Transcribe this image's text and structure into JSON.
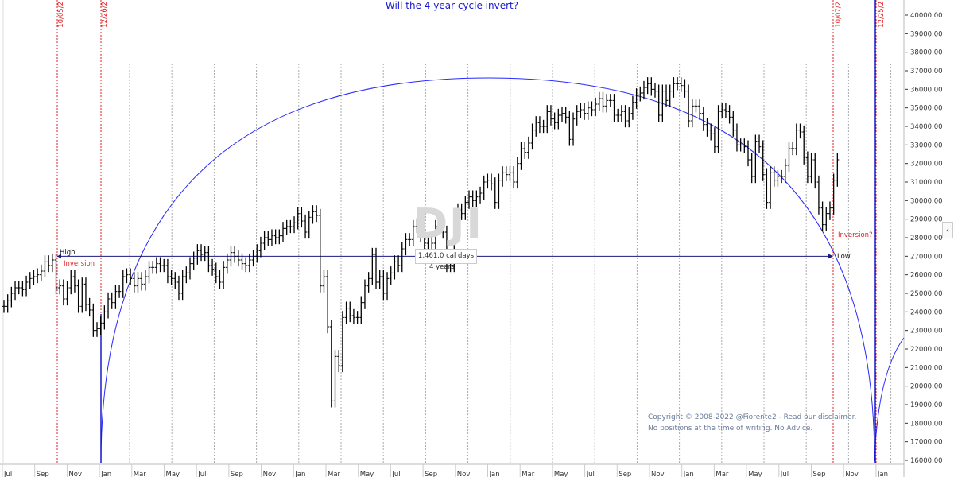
{
  "chart_data": {
    "type": "ohlc-line",
    "title": "Will the 4 year cycle invert?",
    "watermark": "DJI",
    "ylim": [
      16000,
      40000
    ],
    "y_ticks": [
      "40000.00",
      "39000.00",
      "38000.00",
      "37000.00",
      "36000.00",
      "35000.00",
      "34000.00",
      "33000.00",
      "32000.00",
      "31000.00",
      "30000.00",
      "29000.00",
      "28000.00",
      "27000.00",
      "26000.00",
      "25000.00",
      "24000.00",
      "23000.00",
      "22000.00",
      "21000.00",
      "20000.00",
      "19000.00",
      "18000.00",
      "17000.00",
      "16000.00"
    ],
    "x_ticks": [
      "Jul",
      "Sep",
      "Nov",
      "Jan",
      "Mar",
      "May",
      "Jul",
      "Sep",
      "Nov",
      "Jan",
      "Mar",
      "May",
      "Jul",
      "Sep",
      "Nov",
      "Jan",
      "Mar",
      "May",
      "Jul",
      "Sep",
      "Nov",
      "Jan",
      "Mar",
      "May",
      "Jul",
      "Sep",
      "Nov",
      "Jan"
    ],
    "series_weekly_close_thousands": [
      24.3,
      24.6,
      25.0,
      25.3,
      25.3,
      25.2,
      25.6,
      25.8,
      25.9,
      26.0,
      26.2,
      26.7,
      26.5,
      26.8,
      25.3,
      25.4,
      24.7,
      25.3,
      25.9,
      25.4,
      24.3,
      25.5,
      24.4,
      24.1,
      23.0,
      23.1,
      23.4,
      24.0,
      24.7,
      24.5,
      25.1,
      25.1,
      25.9,
      26.0,
      25.8,
      25.4,
      25.8,
      25.5,
      25.9,
      26.4,
      26.4,
      26.6,
      26.5,
      26.5,
      25.9,
      25.8,
      25.6,
      25.0,
      25.9,
      26.1,
      26.6,
      26.9,
      27.3,
      27.1,
      27.2,
      26.5,
      26.3,
      25.9,
      25.6,
      26.4,
      26.8,
      27.2,
      27.0,
      26.8,
      26.6,
      26.5,
      26.8,
      27.0,
      27.3,
      27.7,
      28.0,
      27.9,
      28.1,
      28.0,
      28.1,
      28.5,
      28.6,
      28.6,
      28.8,
      29.3,
      28.9,
      28.3,
      29.1,
      29.4,
      29.2,
      25.4,
      25.9,
      23.2,
      19.2,
      21.6,
      21.1,
      23.7,
      24.2,
      23.8,
      23.7,
      23.7,
      24.5,
      25.4,
      25.8,
      27.1,
      25.6,
      25.9,
      25.0,
      25.8,
      26.1,
      26.7,
      26.5,
      27.4,
      27.9,
      27.9,
      28.6,
      28.7,
      28.1,
      27.7,
      27.1,
      27.7,
      28.6,
      28.6,
      28.3,
      26.5,
      26.5,
      28.3,
      29.5,
      29.3,
      29.9,
      30.2,
      30.0,
      30.2,
      30.4,
      31.0,
      31.1,
      30.9,
      29.9,
      31.1,
      31.5,
      31.4,
      31.5,
      31.0,
      32.0,
      32.8,
      32.6,
      33.1,
      33.8,
      34.2,
      34.0,
      34.0,
      34.8,
      34.4,
      34.2,
      34.6,
      34.7,
      34.5,
      33.3,
      34.4,
      34.8,
      34.9,
      34.7,
      35.0,
      34.9,
      35.2,
      35.5,
      35.1,
      35.4,
      35.4,
      34.6,
      34.6,
      34.8,
      34.3,
      34.7,
      35.3,
      35.7,
      35.8,
      36.1,
      36.3,
      36.0,
      35.9,
      34.6,
      35.9,
      35.4,
      35.9,
      36.3,
      36.3,
      36.2,
      35.9,
      34.3,
      35.1,
      35.1,
      34.7,
      34.1,
      33.8,
      33.6,
      32.9,
      34.8,
      34.9,
      34.8,
      34.5,
      33.8,
      33.0,
      33.0,
      32.9,
      32.2,
      31.3,
      33.2,
      32.9,
      31.4,
      29.9,
      31.5,
      31.1,
      31.3,
      31.3,
      31.9,
      32.8,
      32.8,
      33.8,
      33.7,
      32.3,
      31.3,
      32.2,
      31.0,
      29.6,
      28.7,
      29.3,
      29.6,
      31.1,
      32.2
    ],
    "annotations": {
      "high_label": "High",
      "high_note": "Inversion",
      "low_label": "Low",
      "low_note": "Inversion?",
      "level": 27000,
      "span_days": "1,461.0 cal days",
      "span_years": "4 years",
      "date_markers": [
        "10/05/2",
        "12/26/2",
        "10/07/2",
        "12/25/2"
      ]
    },
    "colors": {
      "title": "#1a1ad0",
      "cycle_arc": "#2a2aff",
      "level_line": "#1a1a80",
      "markers": "#e02020",
      "bars": "#000000"
    }
  },
  "copyright": {
    "line1": "Copyright © 2008-2022 @Fiorente2 -  Read our disclaimer.",
    "line2": "No positions at the time of writing. No Advice."
  },
  "panel_toggle": "‹"
}
